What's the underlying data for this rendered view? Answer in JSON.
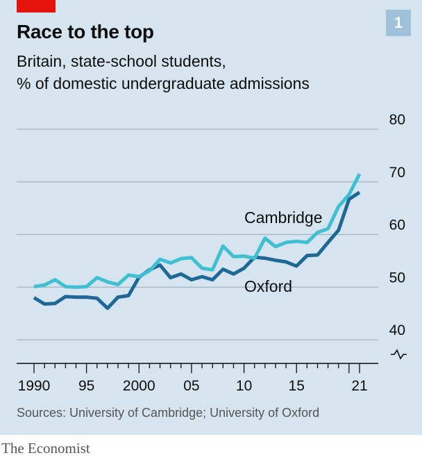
{
  "header": {
    "badge": "1",
    "title": "Race to the top",
    "subtitle_line1": "Britain, state-school students,",
    "subtitle_line2": "% of domestic undergraduate admissions"
  },
  "footer": {
    "source": "Sources: University of Cambridge; University of Oxford",
    "brand": "The Economist"
  },
  "colors": {
    "cambridge": "#3ebfd2",
    "oxford": "#1f6896",
    "grid": "#9fb3c4",
    "axis": "#0d0d0d"
  },
  "chart_data": {
    "type": "line",
    "title": "Race to the top",
    "subtitle": "Britain, state-school students, % of domestic undergraduate admissions",
    "y_axis_side": "right",
    "y_axis_break": true,
    "ylim": [
      40,
      80
    ],
    "xlim": [
      1990,
      2021
    ],
    "y_ticks": [
      40,
      50,
      60,
      70,
      80
    ],
    "x_ticks": [
      {
        "value": 1990,
        "label": "1990"
      },
      {
        "value": 1995,
        "label": "95"
      },
      {
        "value": 2000,
        "label": "2000"
      },
      {
        "value": 2005,
        "label": "05"
      },
      {
        "value": 2010,
        "label": "10"
      },
      {
        "value": 2015,
        "label": "15"
      },
      {
        "value": 2021,
        "label": "21"
      }
    ],
    "grid": true,
    "x": [
      1990,
      1991,
      1992,
      1993,
      1994,
      1995,
      1996,
      1997,
      1998,
      1999,
      2000,
      2001,
      2002,
      2003,
      2004,
      2005,
      2006,
      2007,
      2008,
      2009,
      2010,
      2011,
      2012,
      2013,
      2014,
      2015,
      2016,
      2017,
      2018,
      2019,
      2020,
      2021
    ],
    "series": [
      {
        "name": "Cambridge",
        "label_position": "above",
        "values": [
          50.1,
          50.4,
          51.4,
          50.1,
          50.0,
          50.1,
          51.8,
          51.0,
          50.5,
          52.3,
          52.0,
          53.1,
          55.3,
          54.6,
          55.4,
          55.6,
          53.6,
          53.3,
          57.8,
          55.8,
          55.9,
          55.5,
          59.3,
          57.7,
          58.5,
          58.7,
          58.5,
          60.4,
          61.1,
          65.3,
          67.6,
          71.5
        ]
      },
      {
        "name": "Oxford",
        "label_position": "below",
        "values": [
          48.0,
          46.8,
          46.9,
          48.2,
          48.1,
          48.1,
          47.9,
          46.0,
          48.1,
          48.4,
          51.9,
          53.3,
          54.2,
          51.8,
          52.5,
          51.4,
          52.0,
          51.4,
          53.4,
          52.5,
          53.6,
          55.7,
          55.5,
          55.1,
          54.8,
          54.0,
          56.0,
          56.1,
          58.5,
          60.8,
          66.7,
          68.0
        ]
      }
    ]
  }
}
